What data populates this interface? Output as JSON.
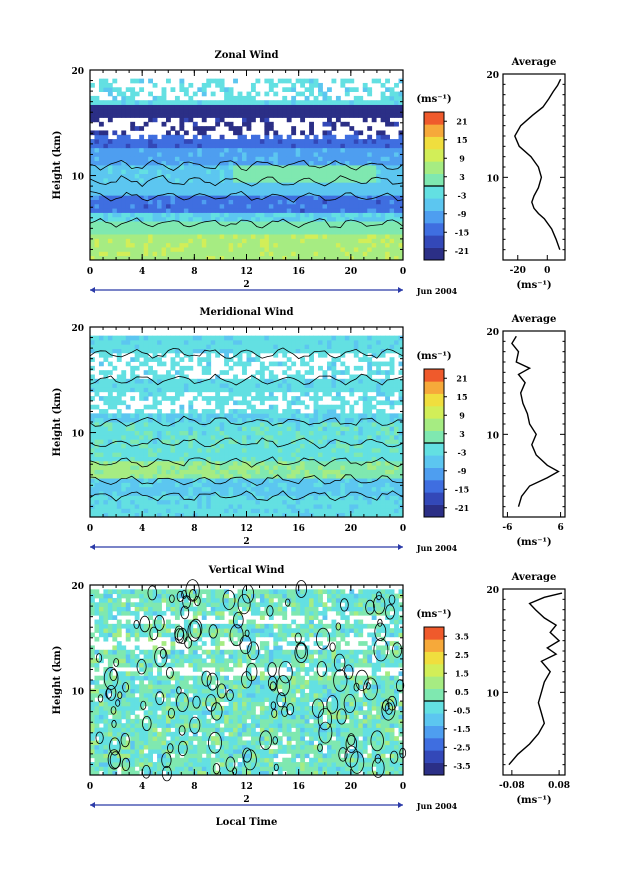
{
  "chart_data": [
    {
      "type": "heatmap",
      "title": "Zonal Wind",
      "xlabel": "",
      "ylabel": "Height (km)",
      "xlim": [
        0,
        24
      ],
      "ylim": [
        2,
        20
      ],
      "x_ticks": [
        "0",
        "4",
        "8",
        "12",
        "16",
        "20",
        "0"
      ],
      "y_ticks": [
        "10",
        "20"
      ],
      "date_label": "2",
      "month_label": "Jun 2004",
      "unit_label": "(ms⁻¹)",
      "colorbar": {
        "min": -24,
        "max": 24,
        "ticks": [
          "21",
          "15",
          "9",
          "3",
          "-3",
          "-9",
          "-15",
          "-21"
        ]
      },
      "profile": {
        "title": "Average",
        "xlabel": "(ms⁻¹)",
        "x_ticks": [
          "-20",
          "0"
        ],
        "xlim": [
          -30,
          12
        ],
        "y_ticks": [
          "10",
          "20"
        ],
        "points": [
          [
            8.5,
            3
          ],
          [
            6,
            4
          ],
          [
            3,
            5
          ],
          [
            -2,
            6
          ],
          [
            -6,
            6.5
          ],
          [
            -9,
            7
          ],
          [
            -10.5,
            7.6
          ],
          [
            -9,
            8.2
          ],
          [
            -6,
            9
          ],
          [
            -4,
            10
          ],
          [
            -6,
            11
          ],
          [
            -11,
            12
          ],
          [
            -19,
            13
          ],
          [
            -22,
            14
          ],
          [
            -18,
            15
          ],
          [
            -10,
            16
          ],
          [
            -3,
            16.8
          ],
          [
            1,
            17.6
          ],
          [
            4,
            18.3
          ],
          [
            7,
            18.9
          ],
          [
            9,
            19.5
          ]
        ]
      }
    },
    {
      "type": "heatmap",
      "title": "Meridional Wind",
      "xlabel": "",
      "ylabel": "Height (km)",
      "xlim": [
        0,
        24
      ],
      "ylim": [
        2,
        20
      ],
      "x_ticks": [
        "0",
        "4",
        "8",
        "12",
        "16",
        "20",
        "0"
      ],
      "y_ticks": [
        "10",
        "20"
      ],
      "date_label": "2",
      "month_label": "Jun 2004",
      "unit_label": "(ms⁻¹)",
      "colorbar": {
        "min": -24,
        "max": 24,
        "ticks": [
          "21",
          "15",
          "9",
          "3",
          "-3",
          "-9",
          "-15",
          "-21"
        ]
      },
      "profile": {
        "title": "Average",
        "xlabel": "(ms⁻¹)",
        "x_ticks": [
          "-6",
          "6"
        ],
        "xlim": [
          -7,
          7
        ],
        "y_ticks": [
          "10",
          "20"
        ],
        "points": [
          [
            -3.5,
            3
          ],
          [
            -2.8,
            4
          ],
          [
            -1,
            5
          ],
          [
            3,
            5.8
          ],
          [
            5.5,
            6.4
          ],
          [
            3,
            7
          ],
          [
            0.5,
            8
          ],
          [
            -0.5,
            9
          ],
          [
            0.5,
            10
          ],
          [
            -1,
            11
          ],
          [
            -1.5,
            12
          ],
          [
            -2.5,
            13
          ],
          [
            -3,
            14
          ],
          [
            -2,
            15
          ],
          [
            -3.5,
            15.8
          ],
          [
            -1,
            16.4
          ],
          [
            -4,
            17
          ],
          [
            -3.5,
            18
          ],
          [
            -5,
            18.8
          ],
          [
            -4,
            19.5
          ]
        ]
      }
    },
    {
      "type": "heatmap",
      "title": "Vertical Wind",
      "xlabel": "Local Time",
      "ylabel": "Height (km)",
      "xlim": [
        0,
        24
      ],
      "ylim": [
        2,
        20
      ],
      "x_ticks": [
        "0",
        "4",
        "8",
        "12",
        "16",
        "20",
        "0"
      ],
      "y_ticks": [
        "10",
        "20"
      ],
      "date_label": "2",
      "month_label": "Jun 2004",
      "unit_label": "(ms⁻¹)",
      "colorbar": {
        "min": -4,
        "max": 4,
        "ticks": [
          "3.5",
          "2.5",
          "1.5",
          "0.5",
          "-0.5",
          "-1.5",
          "-2.5",
          "-3.5"
        ]
      },
      "profile": {
        "title": "Average",
        "xlabel": "(ms⁻¹)",
        "x_ticks": [
          "-0.08",
          "0.08"
        ],
        "xlim": [
          -0.11,
          0.1
        ],
        "y_ticks": [
          "10",
          "20"
        ],
        "points": [
          [
            -0.09,
            3
          ],
          [
            -0.06,
            4
          ],
          [
            -0.02,
            5
          ],
          [
            0.01,
            6
          ],
          [
            0.03,
            7
          ],
          [
            0.02,
            8
          ],
          [
            0.01,
            9
          ],
          [
            0.02,
            10
          ],
          [
            0.03,
            11
          ],
          [
            0.05,
            12
          ],
          [
            0.02,
            13
          ],
          [
            0.07,
            13.7
          ],
          [
            0.04,
            14.3
          ],
          [
            0.08,
            15
          ],
          [
            0.05,
            15.8
          ],
          [
            0.07,
            16.5
          ],
          [
            0.03,
            17.2
          ],
          [
            0,
            18
          ],
          [
            -0.02,
            18.6
          ],
          [
            0.03,
            19.2
          ],
          [
            0.09,
            19.6
          ]
        ]
      }
    }
  ]
}
